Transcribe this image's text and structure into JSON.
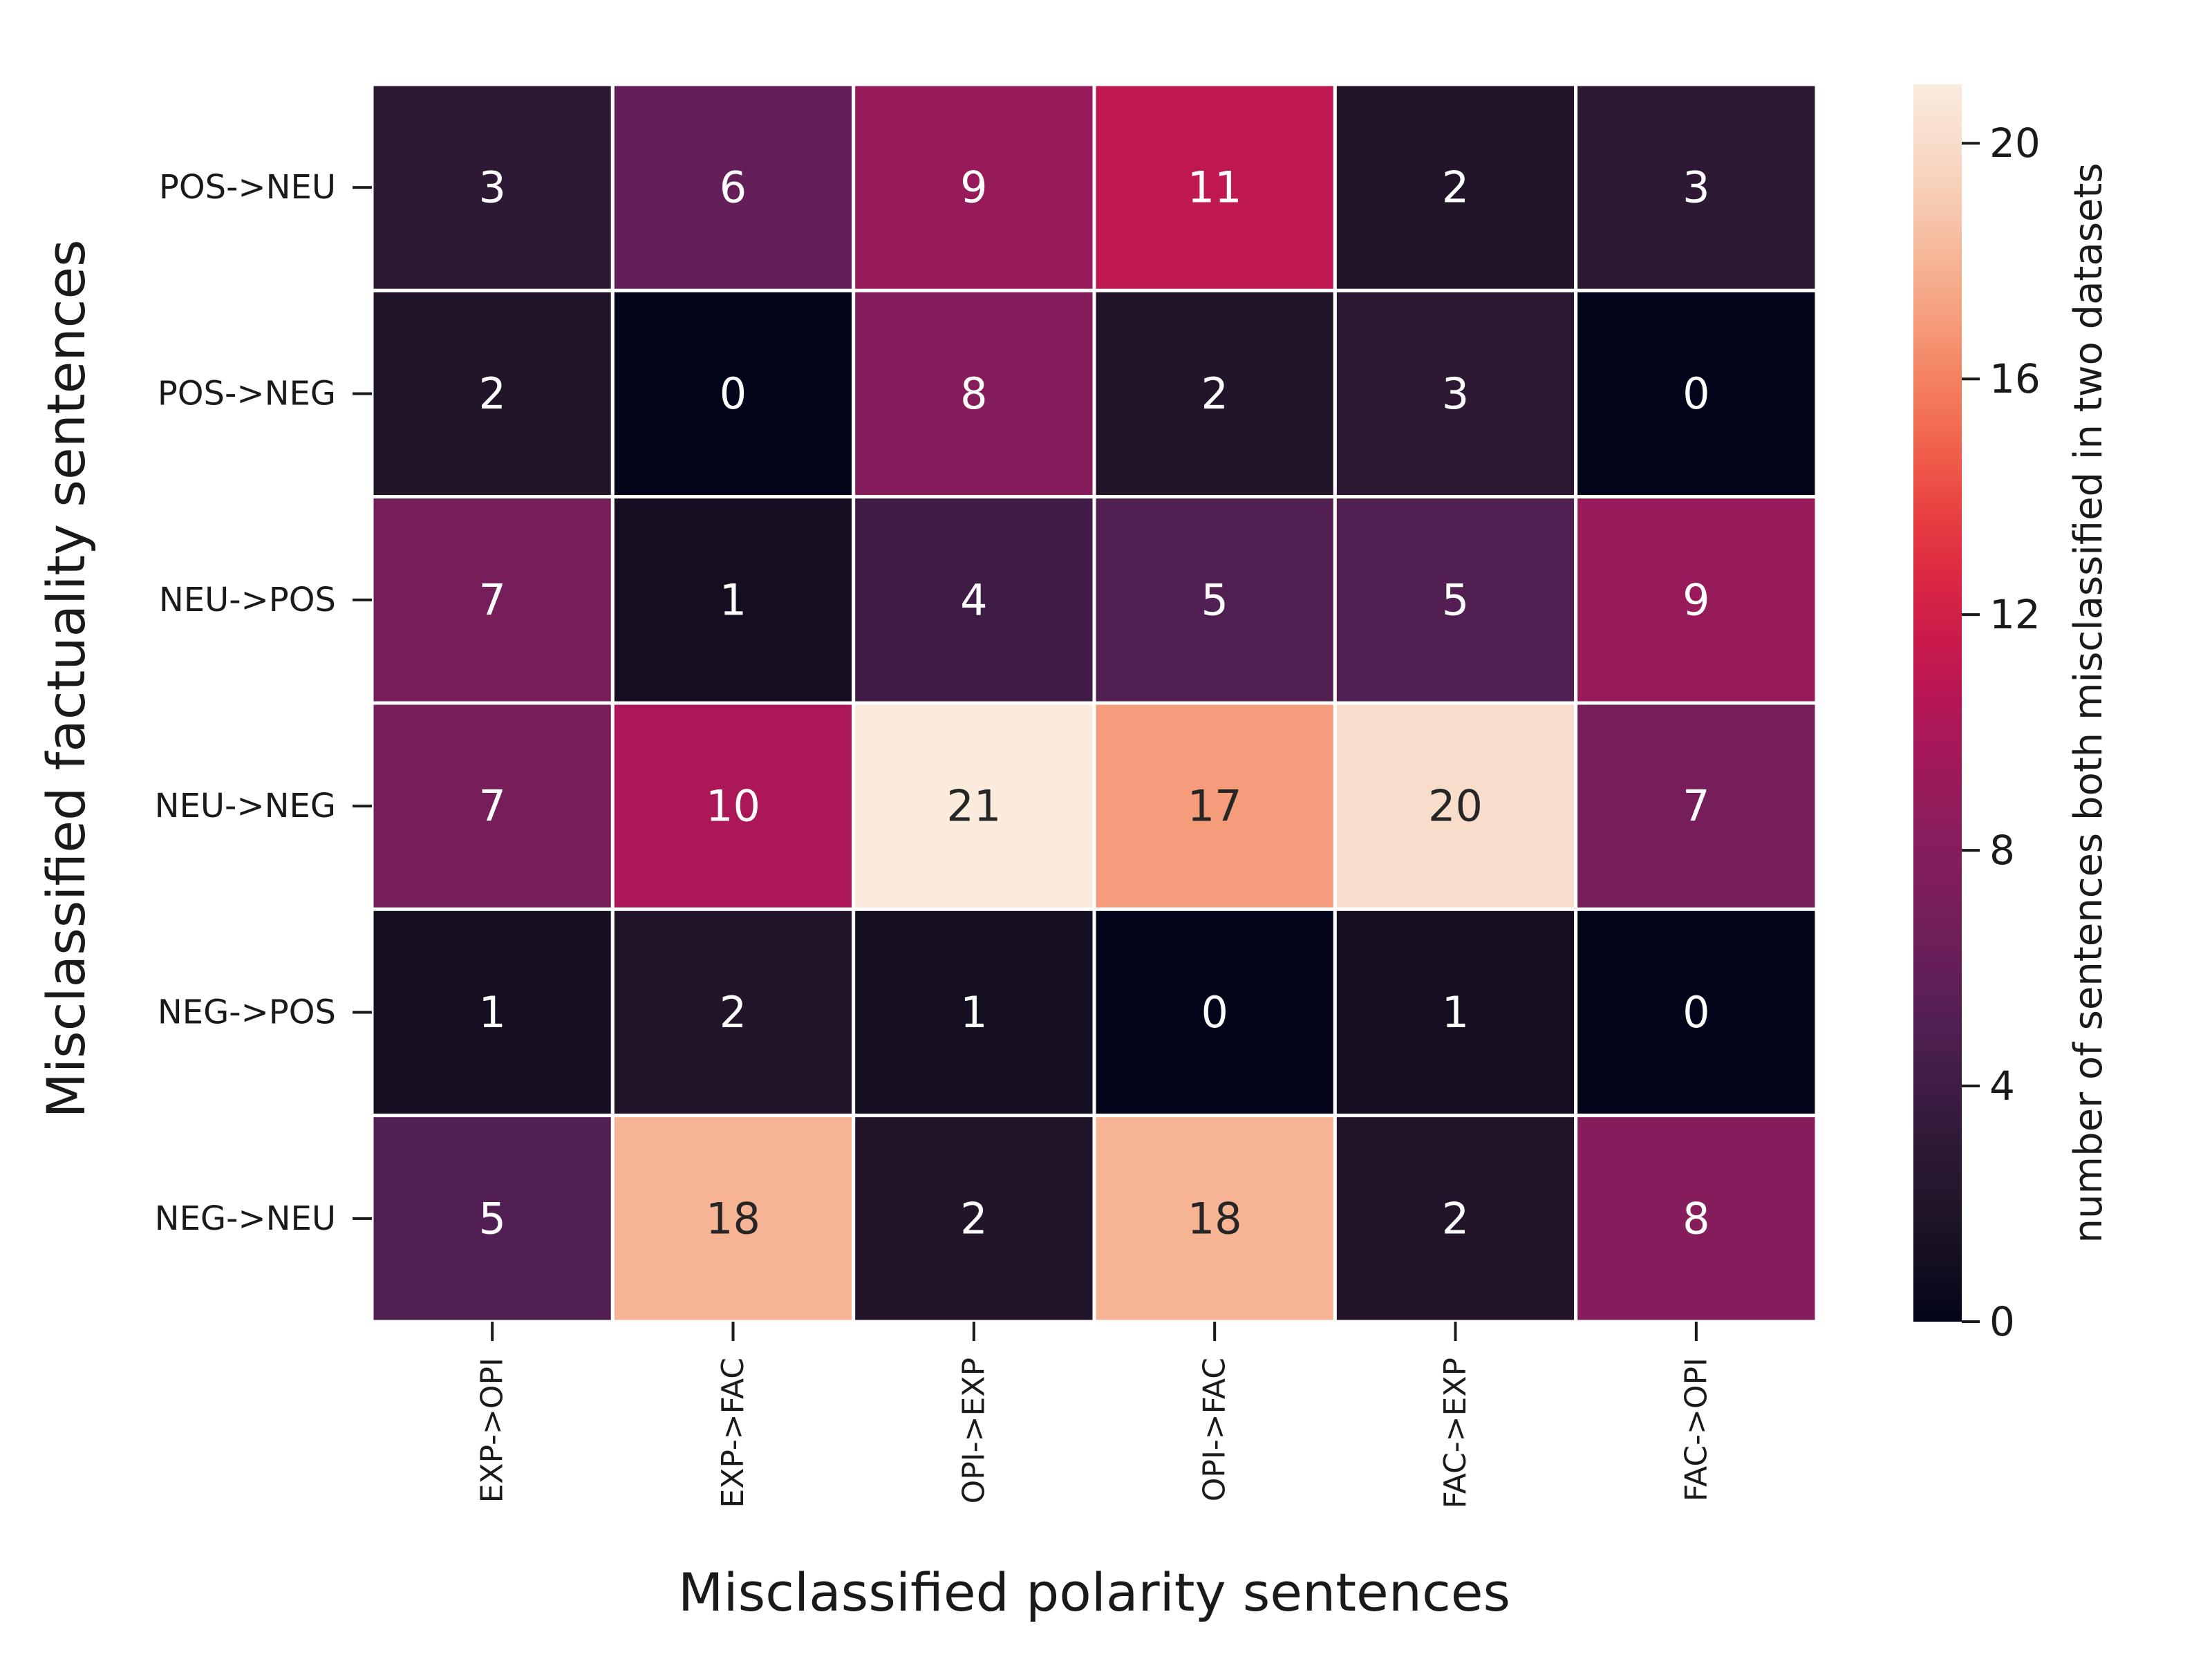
{
  "chart_data": {
    "type": "heatmap",
    "title": "",
    "xlabel": "Misclassified polarity sentences",
    "ylabel": "Misclassified factuality sentences",
    "x_categories": [
      "EXP->OPI",
      "EXP->FAC",
      "OPI->EXP",
      "OPI->FAC",
      "FAC->EXP",
      "FAC->OPI"
    ],
    "y_categories": [
      "POS->NEU",
      "POS->NEG",
      "NEU->POS",
      "NEU->NEG",
      "NEG->POS",
      "NEG->NEU"
    ],
    "values": [
      [
        3,
        6,
        9,
        11,
        2,
        3
      ],
      [
        2,
        0,
        8,
        2,
        3,
        0
      ],
      [
        7,
        1,
        4,
        5,
        5,
        9
      ],
      [
        7,
        10,
        21,
        17,
        20,
        7
      ],
      [
        1,
        2,
        1,
        0,
        1,
        0
      ],
      [
        5,
        18,
        2,
        18,
        2,
        8
      ]
    ],
    "colorbar": {
      "label": "number of sentences both misclassified in two datasets",
      "range": [
        0,
        21
      ],
      "ticks": [
        0,
        4,
        8,
        12,
        16,
        20
      ],
      "colormap": "rocket"
    },
    "annotations": "cell values",
    "grid": false
  }
}
